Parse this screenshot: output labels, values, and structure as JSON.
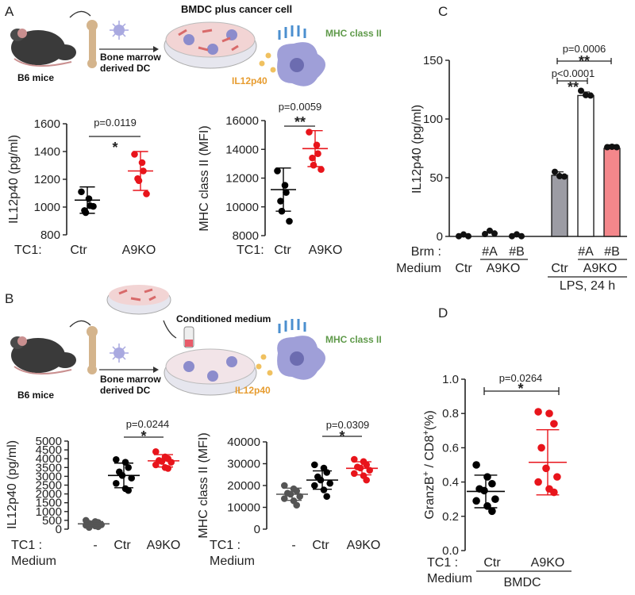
{
  "panels": {
    "A": {
      "letter": "A",
      "schematic": {
        "title": "BMDC plus cancer cell",
        "mouse_label": "B6 mice",
        "bmdc_label_1": "Bone marrow",
        "bmdc_label_2": "derived DC",
        "mhc_label": "MHC class II",
        "il12_label": "IL12p40"
      }
    },
    "B": {
      "letter": "B",
      "schematic": {
        "conditioned_label": "Conditioned medium",
        "mouse_label": "B6 mice",
        "bmdc_label_1": "Bone marrow",
        "bmdc_label_2": "derived DC",
        "mhc_label": "MHC class II",
        "il12_label": "IL12p40"
      }
    },
    "C": {
      "letter": "C"
    },
    "D": {
      "letter": "D"
    }
  },
  "colors": {
    "black": "#000000",
    "red": "#e8141b",
    "grey": "#555555",
    "bar_grey": "#9c9ca4",
    "bar_pink": "#f4878b",
    "green_text": "#5f9a4a",
    "orange_text": "#e79c2f"
  },
  "chart_data": [
    {
      "id": "A1",
      "type": "scatter",
      "ylabel": "IL12p40 (pg/ml)",
      "ylim": [
        800,
        1600
      ],
      "yticks": [
        "800",
        "1000",
        "1200",
        "1400",
        "1600"
      ],
      "row_label": "TC1:",
      "categories": [
        "Ctr",
        "A9KO"
      ],
      "series": [
        {
          "name": "Ctr",
          "color": "#000000",
          "values": [
            1110,
            1060,
            1010,
            975,
            960,
            1005
          ],
          "mean": 1050,
          "sd": 95
        },
        {
          "name": "A9KO",
          "color": "#e8141b",
          "values": [
            1380,
            1320,
            1260,
            1205,
            1190,
            1095
          ],
          "mean": 1260,
          "sd": 140
        }
      ],
      "significance": {
        "pvalue": "p=0.0119",
        "stars": "*"
      }
    },
    {
      "id": "A2",
      "type": "scatter",
      "ylabel": "MHC class II (MFI)",
      "ylim": [
        8000,
        16000
      ],
      "yticks": [
        "8000",
        "10000",
        "12000",
        "14000",
        "16000"
      ],
      "row_label": "TC1:",
      "categories": [
        "Ctr",
        "A9KO"
      ],
      "series": [
        {
          "name": "Ctr",
          "color": "#000000",
          "values": [
            12500,
            11500,
            11000,
            10400,
            9700,
            9000
          ],
          "mean": 11200,
          "sd": 1500
        },
        {
          "name": "A9KO",
          "color": "#e8141b",
          "values": [
            15200,
            14300,
            13700,
            13400,
            12900,
            12600
          ],
          "mean": 14050,
          "sd": 1250
        }
      ],
      "significance": {
        "pvalue": "p=0.0059",
        "stars": "**"
      }
    },
    {
      "id": "B1",
      "type": "scatter",
      "ylabel": "IL12p40 (pg/ml)",
      "ylim": [
        0,
        5000
      ],
      "yticks": [
        "0",
        "500",
        "1000",
        "1500",
        "2000",
        "2500",
        "3000",
        "3500",
        "4000",
        "4500",
        "5000"
      ],
      "row_label_1": "TC1 :",
      "row_label_2": "Medium",
      "categories": [
        "-",
        "Ctr",
        "A9KO"
      ],
      "series": [
        {
          "name": "-",
          "color": "#555555",
          "values": [
            500,
            430,
            380,
            330,
            300,
            250,
            220,
            180,
            140,
            100
          ],
          "mean": 300,
          "sd": 130
        },
        {
          "name": "Ctr",
          "color": "#000000",
          "values": [
            3950,
            3800,
            3500,
            3250,
            3050,
            2900,
            2600,
            2300,
            2200
          ],
          "mean": 3050,
          "sd": 700
        },
        {
          "name": "A9KO",
          "color": "#e8141b",
          "values": [
            4400,
            4100,
            4000,
            3900,
            3850,
            3800,
            3650,
            3500,
            3450
          ],
          "mean": 3880,
          "sd": 350
        }
      ],
      "significance": {
        "pvalue": "p=0.0244",
        "stars": "*"
      }
    },
    {
      "id": "B2",
      "type": "scatter",
      "ylabel": "MHC class II (MFI)",
      "ylim": [
        0,
        40000
      ],
      "yticks": [
        "0",
        "10000",
        "20000",
        "30000",
        "40000"
      ],
      "row_label_1": "TC1 :",
      "row_label_2": "Medium",
      "categories": [
        "-",
        "Ctr",
        "A9KO"
      ],
      "series": [
        {
          "name": "-",
          "color": "#555555",
          "values": [
            20000,
            18500,
            17500,
            16500,
            16000,
            15000,
            14000,
            13000,
            11000
          ],
          "mean": 16000,
          "sd": 2800
        },
        {
          "name": "Ctr",
          "color": "#000000",
          "values": [
            29500,
            28000,
            26000,
            24000,
            22500,
            21000,
            20000,
            18000,
            15000
          ],
          "mean": 22500,
          "sd": 4200
        },
        {
          "name": "A9KO",
          "color": "#e8141b",
          "values": [
            32000,
            31000,
            29500,
            28500,
            28000,
            27000,
            25500,
            24500,
            22500
          ],
          "mean": 27900,
          "sd": 3000
        }
      ],
      "significance": {
        "pvalue": "p=0.0309",
        "stars": "*"
      }
    },
    {
      "id": "C",
      "type": "bar",
      "ylabel": "IL12p40 (pg/ml)",
      "ylim": [
        0,
        150
      ],
      "yticks": [
        "0",
        "50",
        "100",
        "150"
      ],
      "row1_label": "Brm :",
      "row2_label": "Medium",
      "row1": [
        "Ctr",
        "#A",
        "#B",
        "Ctr",
        "#A",
        "#B"
      ],
      "group_label_unstim": "A9KO",
      "group_label_lps_ko": "A9KO",
      "lps_label": "LPS, 24 h",
      "bars": [
        {
          "label": "Ctr",
          "value": 0.2,
          "points": [
            0.2,
            0.3,
            0.2
          ],
          "fill": "none"
        },
        {
          "label": "#A",
          "value": 2.5,
          "points": [
            2,
            3.5,
            2.5
          ],
          "fill": "none"
        },
        {
          "label": "#B",
          "value": 0.3,
          "points": [
            0.2,
            0.4,
            0.2
          ],
          "fill": "none"
        },
        {
          "label": "Ctr",
          "value": 52,
          "points": [
            55,
            50,
            51
          ],
          "fill": "#9c9ca4"
        },
        {
          "label": "#A",
          "value": 120,
          "points": [
            124,
            119,
            120
          ],
          "fill": "#ffffff"
        },
        {
          "label": "#B",
          "value": 75,
          "points": [
            76,
            75,
            76
          ],
          "fill": "#f4878b"
        }
      ],
      "significance": [
        {
          "pvalue": "p=0.0006",
          "stars": "**"
        },
        {
          "pvalue": "p<0.0001",
          "stars": "**"
        }
      ]
    },
    {
      "id": "D",
      "type": "scatter",
      "ylabel": "GranzB+ / CD8+(%)",
      "ylabel_main": "GranzB",
      "ylabel_sup1": "+",
      "ylabel_mid": " / CD8",
      "ylabel_sup2": "+",
      "ylabel_end": "(%)",
      "ylim": [
        0,
        1.0
      ],
      "yticks": [
        "0.0",
        "0.2",
        "0.4",
        "0.6",
        "0.8",
        "1.0"
      ],
      "row_label_1": "TC1 :",
      "row_label_2": "Medium",
      "categories": [
        "Ctr",
        "A9KO"
      ],
      "group_label": "BMDC",
      "series": [
        {
          "name": "Ctr",
          "color": "#000000",
          "values": [
            0.5,
            0.43,
            0.39,
            0.36,
            0.35,
            0.3,
            0.29,
            0.26,
            0.23
          ],
          "mean": 0.345,
          "sd": 0.095
        },
        {
          "name": "A9KO",
          "color": "#e8141b",
          "values": [
            0.81,
            0.8,
            0.74,
            0.6,
            0.48,
            0.43,
            0.4,
            0.36,
            0.34
          ],
          "mean": 0.515,
          "sd": 0.19
        }
      ],
      "significance": {
        "pvalue": "p=0.0264",
        "stars": "*"
      }
    }
  ]
}
